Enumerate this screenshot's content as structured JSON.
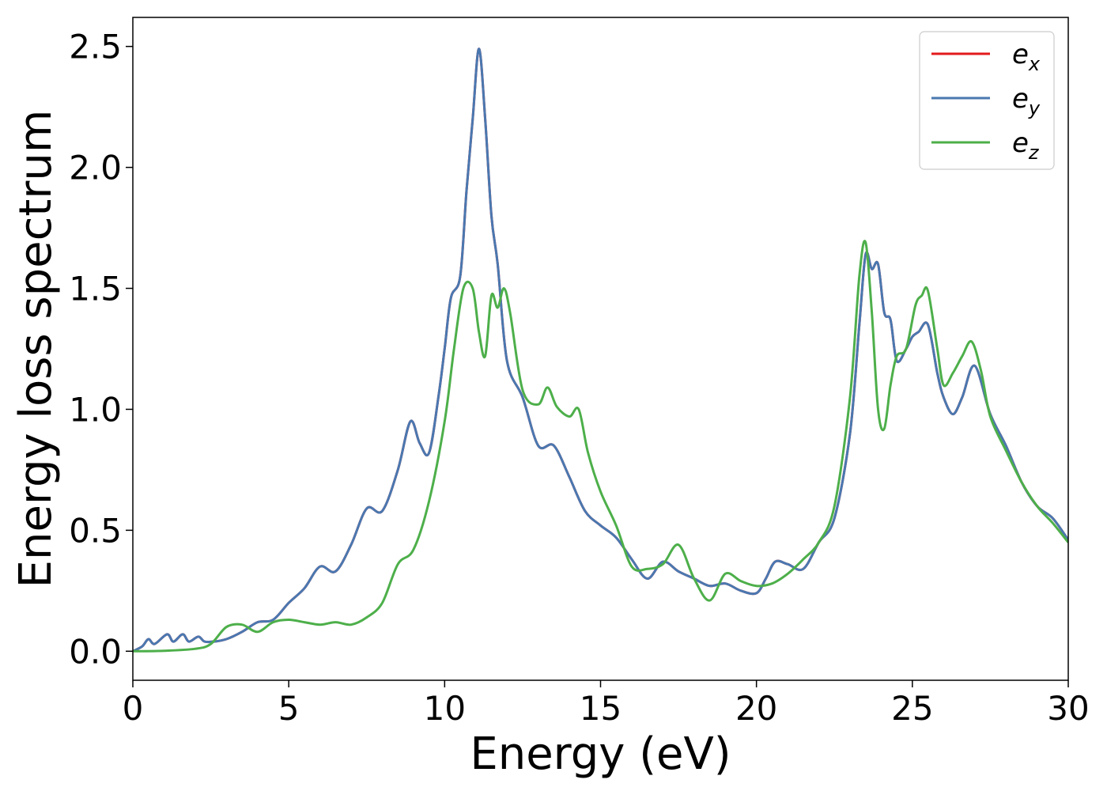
{
  "chart_data": {
    "type": "line",
    "title": "",
    "xlabel": "Energy (eV)",
    "ylabel": "Energy loss spectrum",
    "xlim": [
      0,
      30
    ],
    "ylim": [
      -0.12,
      2.62
    ],
    "xticks": [
      0,
      5,
      10,
      15,
      20,
      25,
      30
    ],
    "xtick_labels": [
      "0",
      "5",
      "10",
      "15",
      "20",
      "25",
      "30"
    ],
    "yticks": [
      0.0,
      0.5,
      1.0,
      1.5,
      2.0,
      2.5
    ],
    "ytick_labels": [
      "0.0",
      "0.5",
      "1.0",
      "1.5",
      "2.0",
      "2.5"
    ],
    "grid": false,
    "legend_position": "top-right",
    "series": [
      {
        "name": "e_x",
        "legend_base": "e",
        "legend_sub": "x",
        "color": "#e41a1c",
        "x": [
          0,
          0.3,
          0.5,
          0.7,
          1.1,
          1.3,
          1.6,
          1.8,
          2.1,
          2.3,
          2.6,
          3,
          3.5,
          4,
          4.5,
          5,
          5.5,
          6,
          6.5,
          7,
          7.5,
          8,
          8.5,
          8.9,
          9.2,
          9.5,
          9.8,
          10,
          10.2,
          10.5,
          10.7,
          10.9,
          11.1,
          11.3,
          11.5,
          11.7,
          12,
          12.5,
          13,
          13.5,
          14,
          14.5,
          15,
          15.5,
          16,
          16.5,
          17,
          17.5,
          18,
          18.5,
          19,
          19.5,
          20,
          20.3,
          20.6,
          21,
          21.5,
          22,
          22.5,
          23,
          23.3,
          23.5,
          23.7,
          23.9,
          24.1,
          24.3,
          24.5,
          24.8,
          25,
          25.2,
          25.5,
          25.8,
          26,
          26.3,
          26.6,
          27,
          27.5,
          28,
          28.5,
          29,
          29.5,
          30
        ],
        "values": [
          0,
          0.02,
          0.05,
          0.03,
          0.07,
          0.04,
          0.07,
          0.04,
          0.06,
          0.04,
          0.04,
          0.05,
          0.08,
          0.12,
          0.13,
          0.2,
          0.26,
          0.35,
          0.33,
          0.44,
          0.59,
          0.58,
          0.75,
          0.95,
          0.86,
          0.82,
          1.05,
          1.25,
          1.46,
          1.55,
          1.9,
          2.2,
          2.49,
          2.2,
          1.8,
          1.6,
          1.2,
          1.05,
          0.85,
          0.85,
          0.72,
          0.58,
          0.52,
          0.47,
          0.38,
          0.3,
          0.37,
          0.33,
          0.3,
          0.27,
          0.28,
          0.25,
          0.24,
          0.3,
          0.37,
          0.36,
          0.34,
          0.45,
          0.55,
          0.9,
          1.35,
          1.64,
          1.58,
          1.6,
          1.4,
          1.37,
          1.2,
          1.25,
          1.3,
          1.32,
          1.35,
          1.15,
          1.05,
          0.98,
          1.05,
          1.18,
          0.98,
          0.85,
          0.7,
          0.6,
          0.55,
          0.46
        ]
      },
      {
        "name": "e_y",
        "legend_base": "e",
        "legend_sub": "y",
        "color": "#4a78b0",
        "x": [
          0,
          0.3,
          0.5,
          0.7,
          1.1,
          1.3,
          1.6,
          1.8,
          2.1,
          2.3,
          2.6,
          3,
          3.5,
          4,
          4.5,
          5,
          5.5,
          6,
          6.5,
          7,
          7.5,
          8,
          8.5,
          8.9,
          9.2,
          9.5,
          9.8,
          10,
          10.2,
          10.5,
          10.7,
          10.9,
          11.1,
          11.3,
          11.5,
          11.7,
          12,
          12.5,
          13,
          13.5,
          14,
          14.5,
          15,
          15.5,
          16,
          16.5,
          17,
          17.5,
          18,
          18.5,
          19,
          19.5,
          20,
          20.3,
          20.6,
          21,
          21.5,
          22,
          22.5,
          23,
          23.3,
          23.5,
          23.7,
          23.9,
          24.1,
          24.3,
          24.5,
          24.8,
          25,
          25.2,
          25.5,
          25.8,
          26,
          26.3,
          26.6,
          27,
          27.5,
          28,
          28.5,
          29,
          29.5,
          30
        ],
        "values": [
          0,
          0.02,
          0.05,
          0.03,
          0.07,
          0.04,
          0.07,
          0.04,
          0.06,
          0.04,
          0.04,
          0.05,
          0.08,
          0.12,
          0.13,
          0.2,
          0.26,
          0.35,
          0.33,
          0.44,
          0.59,
          0.58,
          0.75,
          0.95,
          0.86,
          0.82,
          1.05,
          1.25,
          1.46,
          1.55,
          1.9,
          2.2,
          2.49,
          2.2,
          1.8,
          1.6,
          1.2,
          1.05,
          0.85,
          0.85,
          0.72,
          0.58,
          0.52,
          0.47,
          0.38,
          0.3,
          0.37,
          0.33,
          0.3,
          0.27,
          0.28,
          0.25,
          0.24,
          0.3,
          0.37,
          0.36,
          0.34,
          0.45,
          0.55,
          0.9,
          1.35,
          1.64,
          1.58,
          1.6,
          1.4,
          1.37,
          1.2,
          1.25,
          1.3,
          1.32,
          1.35,
          1.15,
          1.05,
          0.98,
          1.05,
          1.18,
          0.98,
          0.85,
          0.7,
          0.6,
          0.55,
          0.46
        ]
      },
      {
        "name": "e_z",
        "legend_base": "e",
        "legend_sub": "z",
        "color": "#4daf4a",
        "x": [
          0,
          1,
          2,
          2.5,
          3,
          3.5,
          4,
          4.5,
          5,
          5.5,
          6,
          6.5,
          7,
          7.5,
          8,
          8.5,
          9,
          9.5,
          10,
          10.3,
          10.6,
          10.9,
          11.1,
          11.3,
          11.5,
          11.7,
          11.9,
          12.1,
          12.5,
          13,
          13.3,
          13.6,
          14,
          14.3,
          14.6,
          15,
          15.5,
          16,
          16.5,
          17,
          17.5,
          18,
          18.5,
          19,
          19.5,
          20,
          20.5,
          21,
          21.5,
          22,
          22.5,
          23,
          23.3,
          23.5,
          23.7,
          23.9,
          24.1,
          24.3,
          24.5,
          24.8,
          25.1,
          25.3,
          25.5,
          25.8,
          26,
          26.3,
          26.6,
          26.9,
          27.2,
          27.5,
          28,
          28.5,
          29,
          29.5,
          30
        ],
        "values": [
          0,
          0.002,
          0.01,
          0.03,
          0.1,
          0.11,
          0.08,
          0.12,
          0.13,
          0.12,
          0.11,
          0.12,
          0.11,
          0.14,
          0.2,
          0.36,
          0.42,
          0.62,
          0.95,
          1.25,
          1.5,
          1.5,
          1.32,
          1.22,
          1.47,
          1.42,
          1.5,
          1.4,
          1.08,
          1.02,
          1.09,
          1.01,
          0.97,
          1.0,
          0.82,
          0.66,
          0.52,
          0.35,
          0.34,
          0.36,
          0.44,
          0.3,
          0.21,
          0.32,
          0.29,
          0.27,
          0.28,
          0.32,
          0.38,
          0.45,
          0.6,
          1.05,
          1.55,
          1.69,
          1.4,
          1.0,
          0.92,
          1.1,
          1.22,
          1.25,
          1.43,
          1.47,
          1.49,
          1.25,
          1.1,
          1.15,
          1.22,
          1.28,
          1.16,
          0.97,
          0.83,
          0.7,
          0.6,
          0.53,
          0.45
        ]
      }
    ]
  }
}
